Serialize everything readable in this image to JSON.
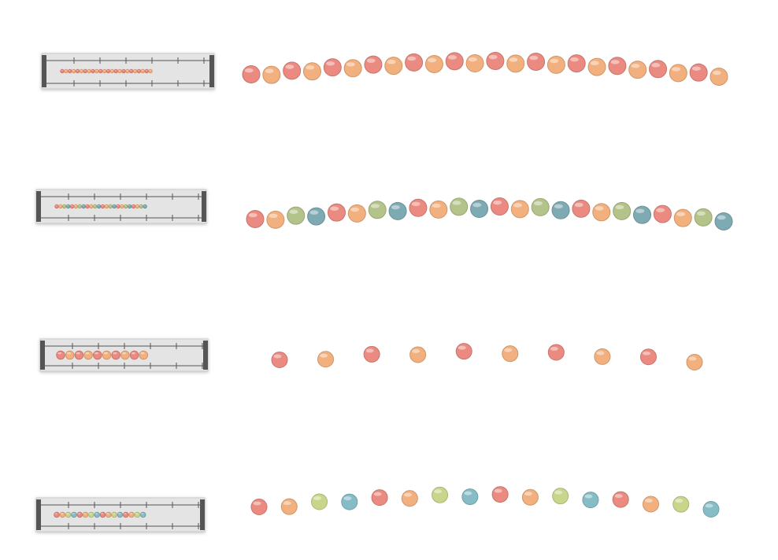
{
  "strands": [
    {
      "beads": [
        "#ea8a80",
        "#f2b07e",
        "#ea8a80",
        "#f2b07e",
        "#ea8a80",
        "#f2b07e",
        "#ea8a80",
        "#f2b07e",
        "#ea8a80",
        "#f2b07e",
        "#ea8a80",
        "#f2b07e",
        "#ea8a80",
        "#f2b07e",
        "#ea8a80",
        "#f2b07e",
        "#ea8a80",
        "#f2b07e",
        "#ea8a80",
        "#f2b07e",
        "#ea8a80",
        "#f2b07e",
        "#ea8a80",
        "#f2b07e"
      ]
    },
    {
      "beads": [
        "#ea8a80",
        "#f2b07e",
        "#b3c38a",
        "#7eaab3",
        "#ea8a80",
        "#f2b07e",
        "#b3c38a",
        "#7eaab3",
        "#ea8a80",
        "#f2b07e",
        "#b3c38a",
        "#7eaab3",
        "#ea8a80",
        "#f2b07e",
        "#b3c38a",
        "#7eaab3",
        "#ea8a80",
        "#f2b07e",
        "#b3c38a",
        "#7eaab3",
        "#ea8a80",
        "#f2b07e",
        "#b3c38a",
        "#7eaab3"
      ]
    },
    {
      "beads": [
        "#ea8a80",
        "#f2b07e",
        "#ea8a80",
        "#f2b07e",
        "#ea8a80",
        "#f2b07e",
        "#ea8a80",
        "#f2b07e",
        "#ea8a80",
        "#f2b07e"
      ]
    },
    {
      "beads": [
        "#ea8a80",
        "#f2b07e",
        "#c8d68c",
        "#86bcc6",
        "#ea8a80",
        "#f2b07e",
        "#c8d68c",
        "#86bcc6",
        "#ea8a80",
        "#f2b07e",
        "#c8d68c",
        "#86bcc6",
        "#ea8a80",
        "#f2b07e",
        "#c8d68c",
        "#86bcc6"
      ]
    }
  ]
}
